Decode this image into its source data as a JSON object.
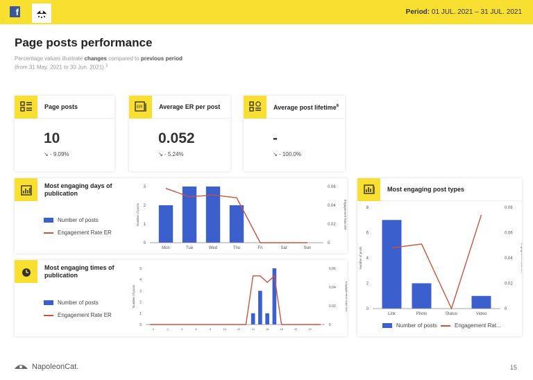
{
  "header": {
    "period_label": "Period:",
    "period_value": "01 JUL. 2021 – 31 JUL. 2021",
    "fb_icon": "f"
  },
  "title": "Page posts performance",
  "subtitle": {
    "p1": "Percentage values illustrate ",
    "b1": "changes",
    "p2": " compared to ",
    "b2": "previous period",
    "p3": "(from 31 May. 2021 to 30 Jun. 2021).",
    "sup": "1"
  },
  "kpis": [
    {
      "title": "Page posts",
      "sup": "",
      "value": "10",
      "change": "- 9.09%",
      "icon": "list-icon"
    },
    {
      "title": "Average ER per post",
      "sup": "",
      "value": "0.052",
      "change": "- 5.24%",
      "icon": "er-icon"
    },
    {
      "title": "Average post lifetime",
      "sup": "6",
      "value": "-",
      "change": "- 100.0%",
      "icon": "clock-list-icon"
    }
  ],
  "colors": {
    "accent": "#f9df30",
    "bar": "#3b5fcc",
    "line": "#c8553d"
  },
  "legend": {
    "posts": "Number of posts",
    "er": "Engagement Rate ER",
    "er_short": "Engagement Rat..."
  },
  "chart_data": [
    {
      "type": "bar+line",
      "title": "Most engaging days of publication",
      "categories": [
        "Mon",
        "Tue",
        "Wed",
        "Thu",
        "Fri",
        "Sat",
        "Sun"
      ],
      "series": [
        {
          "name": "Number of posts",
          "type": "bar",
          "values": [
            2,
            3,
            3,
            2,
            0,
            0,
            0
          ]
        },
        {
          "name": "Engagement Rate ER",
          "type": "line",
          "values": [
            0.058,
            0.049,
            0.051,
            0.048,
            0,
            0,
            0
          ]
        }
      ],
      "ylabel": "Number of posts",
      "y2label": "Engagement Rate ER",
      "ylim": [
        0,
        3
      ],
      "yticks": [
        0,
        1,
        2,
        3
      ],
      "y2lim": [
        0,
        0.06
      ],
      "y2ticks": [
        "0",
        "0.02",
        "0.04",
        "0.06"
      ],
      "legend": "left"
    },
    {
      "type": "bar+line",
      "title": "Most engaging times of publication",
      "categories": [
        "0",
        "1",
        "2",
        "3",
        "4",
        "5",
        "6",
        "7",
        "8",
        "9",
        "10",
        "11",
        "12",
        "13",
        "14",
        "15",
        "16",
        "17",
        "18",
        "19",
        "20",
        "21",
        "22",
        "23"
      ],
      "xticks": [
        "0",
        "2",
        "4",
        "6",
        "8",
        "10",
        "12",
        "14",
        "16",
        "18",
        "20",
        "22"
      ],
      "series": [
        {
          "name": "Number of posts",
          "type": "bar",
          "values": [
            0,
            0,
            0,
            0,
            0,
            0,
            0,
            0,
            0,
            0,
            0,
            0,
            0,
            0,
            1,
            3,
            1,
            5,
            0,
            0,
            0,
            0,
            0,
            0
          ]
        },
        {
          "name": "Engagement Rate ER",
          "type": "line",
          "values": [
            0,
            0,
            0,
            0,
            0,
            0,
            0,
            0,
            0,
            0,
            0,
            0,
            0,
            0,
            0.052,
            0.052,
            0.045,
            0.052,
            0,
            0,
            0,
            0,
            0,
            0
          ]
        }
      ],
      "ylabel": "Number of posts",
      "y2label": "Engagement Rate ER",
      "ylim": [
        0,
        5
      ],
      "yticks": [
        0,
        1,
        2,
        3,
        4,
        5
      ],
      "y2lim": [
        0,
        0.06
      ],
      "y2ticks": [
        "0",
        "0.02",
        "0.04",
        "0.06"
      ],
      "legend": "left"
    },
    {
      "type": "bar+line",
      "title": "Most engaging post types",
      "categories": [
        "Link",
        "Photo",
        "Status",
        "Video"
      ],
      "series": [
        {
          "name": "Number of posts",
          "type": "bar",
          "values": [
            7,
            2,
            0,
            1
          ]
        },
        {
          "name": "Engagement Rate ER",
          "type": "line",
          "values": [
            0.048,
            0.051,
            0,
            0.074
          ]
        }
      ],
      "ylabel": "Number of posts",
      "y2label": "Engagement Rate ER",
      "ylim": [
        0,
        8
      ],
      "yticks": [
        0,
        2,
        4,
        6,
        8
      ],
      "y2lim": [
        0,
        0.08
      ],
      "y2ticks": [
        "0",
        "0.02",
        "0.04",
        "0.06",
        "0.08"
      ],
      "legend": "bottom"
    }
  ],
  "footer": {
    "brand": "NapoleonCat.",
    "page": "15"
  }
}
